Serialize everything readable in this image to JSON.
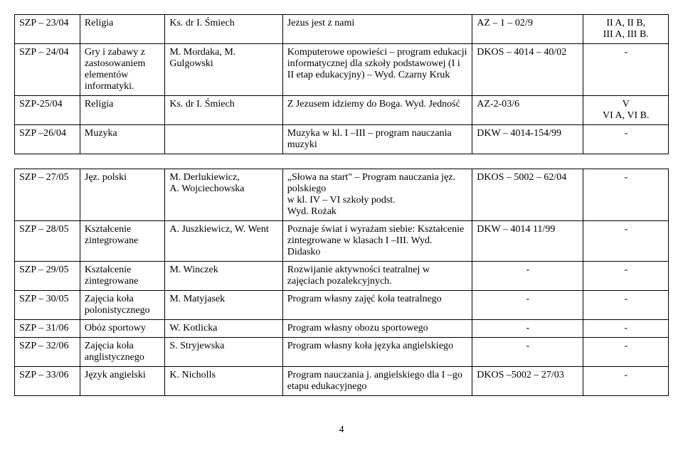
{
  "table1": {
    "rows": [
      {
        "c1": "SZP – 23/04",
        "c2": "Religia",
        "c3": "Ks. dr I. Śmiech",
        "c4": "Jezus jest z nami",
        "c5": "AZ – 1 – 02/9",
        "c6": "II A, II B,\nIII A, III B."
      },
      {
        "c1": "SZP – 24/04",
        "c2": "Gry i zabawy z zastosowaniem elementów informatyki.",
        "c3": "M. Mordaka, M. Gulgowski",
        "c4": "Komputerowe opowieści – program edukacji informatycznej dla szkoły podstawowej (I i II etap edukacyjny) – Wyd. Czarny Kruk",
        "c5": "DKOS – 4014 – 40/02",
        "c6": "-"
      },
      {
        "c1": "SZP-25/04",
        "c2": "Religia",
        "c3": "Ks. dr I. Śmiech",
        "c4": "Z Jezusem idziemy do Boga. Wyd. Jedność",
        "c5": "AZ-2-03/6",
        "c6": "V\nVI A, VI B."
      },
      {
        "c1": "SZP –26/04",
        "c2": "Muzyka",
        "c3": "",
        "c4": "Muzyka w kl. I –III – program nauczania muzyki",
        "c5": "DKW – 4014-154/99",
        "c6": "-"
      }
    ]
  },
  "table2": {
    "rows": [
      {
        "c1": "SZP – 27/05",
        "c2": "Jęz. polski",
        "c3": "M. Derlukiewicz,\nA. Wojciechowska",
        "c4": "„Słowa na start\" – Program nauczania jęz. polskiego\nw kl. IV – VI szkoły podst.\nWyd. Rożak",
        "c5": "DKOS – 5002 – 62/04",
        "c6": "-"
      },
      {
        "c1": "SZP – 28/05",
        "c2": "Kształcenie zintegrowane",
        "c3": "A. Juszkiewicz, W. Went",
        "c4": "Poznaje świat i wyrażam siebie: Kształcenie zintegrowane w klasach I –III. Wyd. Didasko",
        "c5": "DKW – 4014 11/99",
        "c6": "-"
      },
      {
        "c1": "SZP – 29/05",
        "c2": "Kształcenie zintegrowane",
        "c3": "M. Winczek",
        "c4": "Rozwijanie aktywności teatralnej w zajęciach pozalekcyjnych.",
        "c5": "-",
        "c6": "-"
      },
      {
        "c1": "SZP – 30/05",
        "c2": "Zajęcia koła polonistycznego",
        "c3": "M. Matyjasek",
        "c4": "Program własny zajęć koła teatralnego",
        "c5": "-",
        "c6": "-"
      },
      {
        "c1": "SZP – 31/06",
        "c2": "Obóz sportowy",
        "c3": "W. Kotlicka",
        "c4": "Program własny obozu sportowego",
        "c5": "-",
        "c6": "-"
      },
      {
        "c1": "SZP – 32/06",
        "c2": "Zajęcia koła anglistycznego",
        "c3": "S. Stryjewska",
        "c4": "Program własny koła języka angielskiego",
        "c5": "-",
        "c6": "-"
      },
      {
        "c1": "SZP – 33/06",
        "c2": "Język angielski",
        "c3": "K. Nicholls",
        "c4": "Program nauczania j. angielskiego dla I –go etapu edukacyjnego",
        "c5": "DKOS –5002 – 27/03",
        "c6": "-"
      }
    ]
  },
  "page_number": "4"
}
